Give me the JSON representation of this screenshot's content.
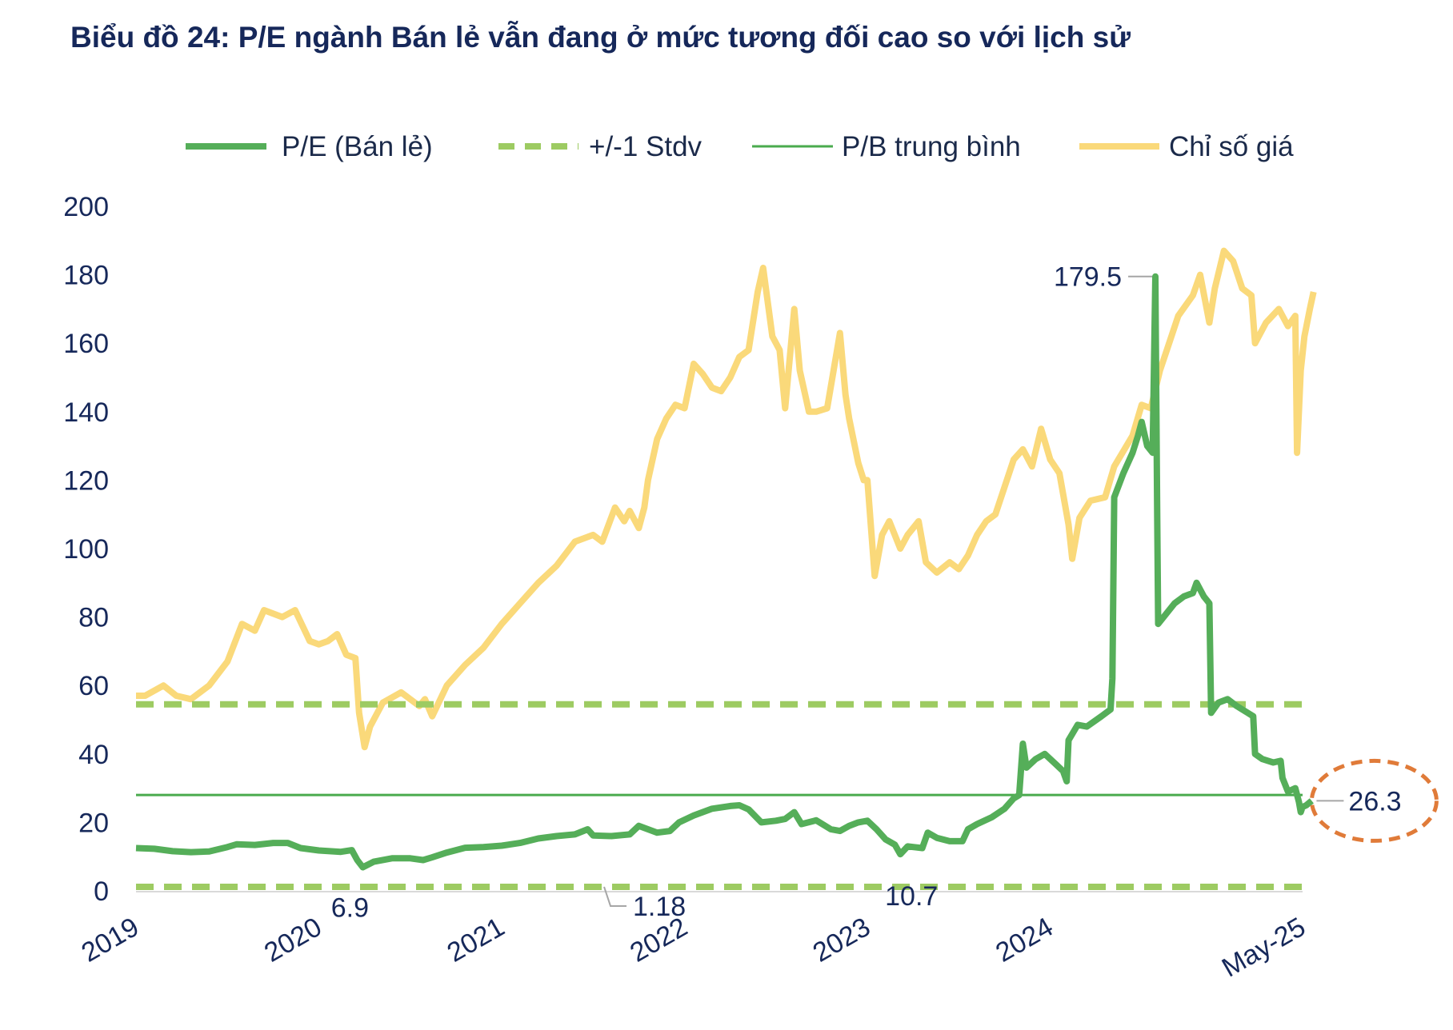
{
  "chart_data": {
    "type": "line",
    "title": "Biểu đồ 24: P/E ngành Bán lẻ vẫn đang ở mức tương đối cao so với lịch sử",
    "x_labels": [
      "2019",
      "2020",
      "2021",
      "2022",
      "2023",
      "2024",
      "May-25"
    ],
    "x_range": [
      2019.0,
      2025.38
    ],
    "ylim": [
      0,
      200
    ],
    "y_ticks": [
      0,
      20,
      40,
      60,
      80,
      100,
      120,
      140,
      160,
      180,
      200
    ],
    "legend": [
      "P/E (Bán lẻ)",
      "+/-1 Stdv",
      "P/B trung bình",
      "Chỉ số giá"
    ],
    "legend_position": "top",
    "colors": {
      "pe": "#55ae59",
      "stdv": "#9dcb62",
      "avg": "#4aab4e",
      "price": "#fad97a",
      "highlight": "#e07b39",
      "title": "#16285a",
      "connector": "#a6a6a6"
    },
    "series": [
      {
        "name": "P/E (Bán lẻ)",
        "points": [
          [
            2019.0,
            12.5
          ],
          [
            2019.1,
            12.3
          ],
          [
            2019.2,
            11.6
          ],
          [
            2019.3,
            11.3
          ],
          [
            2019.4,
            11.5
          ],
          [
            2019.5,
            12.8
          ],
          [
            2019.55,
            13.6
          ],
          [
            2019.65,
            13.4
          ],
          [
            2019.75,
            14.0
          ],
          [
            2019.83,
            14.0
          ],
          [
            2019.9,
            12.5
          ],
          [
            2020.0,
            11.8
          ],
          [
            2020.12,
            11.4
          ],
          [
            2020.18,
            11.9
          ],
          [
            2020.21,
            9.0
          ],
          [
            2020.24,
            6.9
          ],
          [
            2020.3,
            8.5
          ],
          [
            2020.4,
            9.5
          ],
          [
            2020.5,
            9.5
          ],
          [
            2020.57,
            9.0
          ],
          [
            2020.62,
            9.8
          ],
          [
            2020.7,
            11.2
          ],
          [
            2020.8,
            12.6
          ],
          [
            2020.9,
            12.8
          ],
          [
            2021.0,
            13.2
          ],
          [
            2021.1,
            14.0
          ],
          [
            2021.2,
            15.3
          ],
          [
            2021.3,
            16.0
          ],
          [
            2021.4,
            16.5
          ],
          [
            2021.47,
            18.0
          ],
          [
            2021.5,
            16.2
          ],
          [
            2021.6,
            16.0
          ],
          [
            2021.7,
            16.5
          ],
          [
            2021.75,
            19.0
          ],
          [
            2021.85,
            17.0
          ],
          [
            2021.92,
            17.5
          ],
          [
            2021.97,
            20.0
          ],
          [
            2022.05,
            22.0
          ],
          [
            2022.15,
            24.0
          ],
          [
            2022.25,
            24.8
          ],
          [
            2022.3,
            25.0
          ],
          [
            2022.35,
            23.8
          ],
          [
            2022.42,
            20.0
          ],
          [
            2022.5,
            20.5
          ],
          [
            2022.55,
            21.0
          ],
          [
            2022.6,
            23.0
          ],
          [
            2022.64,
            19.5
          ],
          [
            2022.72,
            20.6
          ],
          [
            2022.8,
            18.0
          ],
          [
            2022.85,
            17.5
          ],
          [
            2022.9,
            19.0
          ],
          [
            2022.95,
            20.0
          ],
          [
            2023.0,
            20.5
          ],
          [
            2023.05,
            18.0
          ],
          [
            2023.1,
            15.0
          ],
          [
            2023.15,
            13.5
          ],
          [
            2023.18,
            10.7
          ],
          [
            2023.22,
            13.0
          ],
          [
            2023.3,
            12.5
          ],
          [
            2023.33,
            17.0
          ],
          [
            2023.38,
            15.5
          ],
          [
            2023.45,
            14.5
          ],
          [
            2023.52,
            14.5
          ],
          [
            2023.55,
            18.0
          ],
          [
            2023.6,
            19.5
          ],
          [
            2023.68,
            21.5
          ],
          [
            2023.75,
            24.0
          ],
          [
            2023.8,
            27.0
          ],
          [
            2023.83,
            28.0
          ],
          [
            2023.85,
            43.0
          ],
          [
            2023.87,
            36.0
          ],
          [
            2023.92,
            38.5
          ],
          [
            2023.97,
            40.0
          ],
          [
            2024.03,
            37.0
          ],
          [
            2024.07,
            35.0
          ],
          [
            2024.09,
            32.0
          ],
          [
            2024.1,
            44.0
          ],
          [
            2024.15,
            48.5
          ],
          [
            2024.2,
            48.0
          ],
          [
            2024.28,
            51.0
          ],
          [
            2024.33,
            53.0
          ],
          [
            2024.34,
            62.0
          ],
          [
            2024.35,
            115.0
          ],
          [
            2024.4,
            122.0
          ],
          [
            2024.45,
            128.0
          ],
          [
            2024.48,
            133.0
          ],
          [
            2024.5,
            137.0
          ],
          [
            2024.53,
            130.0
          ],
          [
            2024.56,
            128.0
          ],
          [
            2024.575,
            179.5
          ],
          [
            2024.585,
            110.0
          ],
          [
            2024.59,
            78.0
          ],
          [
            2024.62,
            80.0
          ],
          [
            2024.68,
            84.0
          ],
          [
            2024.73,
            86.0
          ],
          [
            2024.78,
            87.0
          ],
          [
            2024.8,
            90.0
          ],
          [
            2024.84,
            86.0
          ],
          [
            2024.87,
            84.0
          ],
          [
            2024.88,
            52.0
          ],
          [
            2024.92,
            55.0
          ],
          [
            2024.97,
            56.0
          ],
          [
            2025.02,
            54.0
          ],
          [
            2025.08,
            52.0
          ],
          [
            2025.11,
            51.0
          ],
          [
            2025.12,
            40.0
          ],
          [
            2025.16,
            38.5
          ],
          [
            2025.22,
            37.5
          ],
          [
            2025.26,
            38.0
          ],
          [
            2025.27,
            33.0
          ],
          [
            2025.3,
            29.0
          ],
          [
            2025.34,
            30.0
          ],
          [
            2025.36,
            26.0
          ],
          [
            2025.37,
            23.0
          ],
          [
            2025.38,
            24.5
          ],
          [
            2025.4,
            25.0
          ],
          [
            2025.43,
            26.3
          ]
        ]
      },
      {
        "name": "Chỉ số giá",
        "points": [
          [
            2019.0,
            57.0
          ],
          [
            2019.05,
            57.0
          ],
          [
            2019.15,
            60.0
          ],
          [
            2019.22,
            57.0
          ],
          [
            2019.3,
            56.0
          ],
          [
            2019.4,
            60.0
          ],
          [
            2019.5,
            67.0
          ],
          [
            2019.58,
            78.0
          ],
          [
            2019.65,
            76.0
          ],
          [
            2019.7,
            82.0
          ],
          [
            2019.8,
            80.0
          ],
          [
            2019.87,
            82.0
          ],
          [
            2019.95,
            73.0
          ],
          [
            2020.0,
            72.0
          ],
          [
            2020.05,
            73.0
          ],
          [
            2020.1,
            75.0
          ],
          [
            2020.15,
            69.0
          ],
          [
            2020.2,
            68.0
          ],
          [
            2020.22,
            52.0
          ],
          [
            2020.25,
            42.0
          ],
          [
            2020.28,
            48.0
          ],
          [
            2020.35,
            55.0
          ],
          [
            2020.45,
            58.0
          ],
          [
            2020.55,
            54.0
          ],
          [
            2020.58,
            56.0
          ],
          [
            2020.62,
            51.0
          ],
          [
            2020.7,
            60.0
          ],
          [
            2020.8,
            66.0
          ],
          [
            2020.9,
            71.0
          ],
          [
            2021.0,
            78.0
          ],
          [
            2021.1,
            84.0
          ],
          [
            2021.2,
            90.0
          ],
          [
            2021.3,
            95.0
          ],
          [
            2021.4,
            102.0
          ],
          [
            2021.5,
            104.0
          ],
          [
            2021.55,
            102.0
          ],
          [
            2021.62,
            112.0
          ],
          [
            2021.67,
            108.0
          ],
          [
            2021.7,
            111.0
          ],
          [
            2021.75,
            106.0
          ],
          [
            2021.78,
            112.0
          ],
          [
            2021.8,
            120.0
          ],
          [
            2021.85,
            132.0
          ],
          [
            2021.9,
            138.0
          ],
          [
            2021.95,
            142.0
          ],
          [
            2022.0,
            141.0
          ],
          [
            2022.05,
            154.0
          ],
          [
            2022.1,
            151.0
          ],
          [
            2022.15,
            147.0
          ],
          [
            2022.2,
            146.0
          ],
          [
            2022.25,
            150.0
          ],
          [
            2022.3,
            156.0
          ],
          [
            2022.35,
            158.0
          ],
          [
            2022.4,
            175.0
          ],
          [
            2022.43,
            182.0
          ],
          [
            2022.48,
            162.0
          ],
          [
            2022.52,
            158.0
          ],
          [
            2022.55,
            141.0
          ],
          [
            2022.6,
            170.0
          ],
          [
            2022.63,
            152.0
          ],
          [
            2022.68,
            140.0
          ],
          [
            2022.72,
            140.0
          ],
          [
            2022.78,
            141.0
          ],
          [
            2022.85,
            163.0
          ],
          [
            2022.88,
            145.0
          ],
          [
            2022.9,
            138.0
          ],
          [
            2022.95,
            125.0
          ],
          [
            2022.98,
            120.0
          ],
          [
            2023.0,
            120.0
          ],
          [
            2023.04,
            92.0
          ],
          [
            2023.08,
            104.0
          ],
          [
            2023.12,
            108.0
          ],
          [
            2023.18,
            100.0
          ],
          [
            2023.22,
            104.0
          ],
          [
            2023.28,
            108.0
          ],
          [
            2023.32,
            96.0
          ],
          [
            2023.38,
            93.0
          ],
          [
            2023.45,
            96.0
          ],
          [
            2023.5,
            94.0
          ],
          [
            2023.55,
            98.0
          ],
          [
            2023.6,
            104.0
          ],
          [
            2023.65,
            108.0
          ],
          [
            2023.7,
            110.0
          ],
          [
            2023.75,
            118.0
          ],
          [
            2023.8,
            126.0
          ],
          [
            2023.85,
            129.0
          ],
          [
            2023.9,
            124.0
          ],
          [
            2023.95,
            135.0
          ],
          [
            2024.0,
            126.0
          ],
          [
            2024.05,
            122.0
          ],
          [
            2024.1,
            107.0
          ],
          [
            2024.12,
            97.0
          ],
          [
            2024.16,
            109.0
          ],
          [
            2024.22,
            114.0
          ],
          [
            2024.3,
            115.0
          ],
          [
            2024.35,
            124.0
          ],
          [
            2024.45,
            133.0
          ],
          [
            2024.5,
            142.0
          ],
          [
            2024.55,
            141.0
          ],
          [
            2024.6,
            152.0
          ],
          [
            2024.65,
            160.0
          ],
          [
            2024.7,
            168.0
          ],
          [
            2024.78,
            174.0
          ],
          [
            2024.82,
            180.0
          ],
          [
            2024.87,
            166.0
          ],
          [
            2024.9,
            176.0
          ],
          [
            2024.95,
            187.0
          ],
          [
            2025.0,
            184.0
          ],
          [
            2025.05,
            176.0
          ],
          [
            2025.1,
            174.0
          ],
          [
            2025.12,
            160.0
          ],
          [
            2025.18,
            166.0
          ],
          [
            2025.25,
            170.0
          ],
          [
            2025.3,
            165.0
          ],
          [
            2025.34,
            168.0
          ],
          [
            2025.35,
            128.0
          ],
          [
            2025.37,
            152.0
          ],
          [
            2025.39,
            162.0
          ],
          [
            2025.42,
            170.0
          ],
          [
            2025.44,
            175.0
          ]
        ]
      },
      {
        "name": "+/-1 Stdv",
        "values": [
          54.5,
          1.18
        ]
      },
      {
        "name": "P/B trung bình",
        "value": 28.0
      }
    ],
    "annotations": [
      {
        "label": "179.5",
        "x": 2024.575,
        "y": 179.5
      },
      {
        "label": "6.9",
        "x": 2020.24,
        "y": 6.9
      },
      {
        "label": "1.18",
        "x": 2021.56,
        "y": 1.18
      },
      {
        "label": "10.7",
        "x": 2023.18,
        "y": 10.7
      },
      {
        "label": "26.3",
        "x": 2025.43,
        "y": 26.3
      }
    ]
  }
}
